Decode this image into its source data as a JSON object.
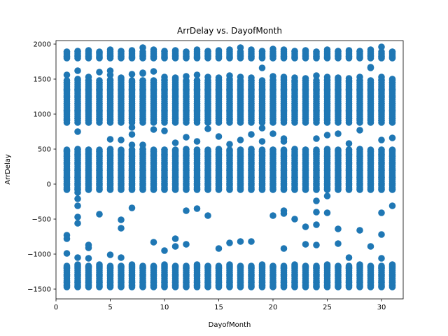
{
  "chart_data": {
    "type": "scatter",
    "title": "ArrDelay vs. DayofMonth",
    "xlabel": "DayofMonth",
    "ylabel": "ArrDelay",
    "xlim": [
      0,
      32
    ],
    "ylim": [
      -1640,
      2050
    ],
    "xticks": [
      0,
      5,
      10,
      15,
      20,
      25,
      30
    ],
    "yticks": [
      -1500,
      -1000,
      -500,
      0,
      500,
      1000,
      1500,
      2000
    ],
    "grid": false,
    "legend": false,
    "marker_color": "#1f77b4",
    "x": [
      1,
      2,
      3,
      4,
      5,
      6,
      7,
      8,
      9,
      10,
      11,
      12,
      13,
      14,
      15,
      16,
      17,
      18,
      19,
      20,
      21,
      22,
      23,
      24,
      25,
      26,
      27,
      28,
      29,
      30,
      31
    ],
    "series": [
      {
        "values": [
          -70,
          -70,
          -70,
          -70,
          -70,
          -70,
          -70,
          -70,
          -70,
          -70,
          -70,
          -70,
          -70,
          -70,
          -70,
          -70,
          -70,
          -70,
          -70,
          -70,
          -70,
          -70,
          -70,
          -70,
          -70,
          -70,
          -70,
          -70,
          -70,
          -70,
          -70
        ]
      },
      {
        "values": [
          0,
          0,
          0,
          0,
          0,
          0,
          0,
          0,
          0,
          0,
          0,
          0,
          0,
          0,
          0,
          0,
          0,
          0,
          0,
          0,
          0,
          0,
          0,
          0,
          0,
          0,
          0,
          0,
          0,
          0,
          0
        ]
      },
      {
        "values": [
          100,
          100,
          100,
          100,
          100,
          100,
          100,
          100,
          100,
          100,
          100,
          100,
          100,
          100,
          100,
          100,
          100,
          100,
          100,
          100,
          100,
          100,
          100,
          100,
          100,
          100,
          100,
          100,
          100,
          100,
          100
        ]
      },
      {
        "values": [
          200,
          200,
          200,
          200,
          200,
          200,
          200,
          200,
          200,
          200,
          200,
          200,
          200,
          200,
          200,
          200,
          200,
          200,
          200,
          200,
          200,
          200,
          200,
          200,
          200,
          200,
          200,
          200,
          200,
          200,
          200
        ]
      },
      {
        "values": [
          300,
          300,
          300,
          300,
          300,
          300,
          300,
          300,
          300,
          300,
          300,
          300,
          300,
          300,
          300,
          300,
          300,
          300,
          300,
          300,
          300,
          300,
          300,
          300,
          300,
          300,
          300,
          300,
          300,
          300,
          300
        ]
      },
      {
        "values": [
          400,
          420,
          430,
          400,
          410,
          420,
          400,
          430,
          410,
          420,
          400,
          410,
          430,
          400,
          420,
          410,
          400,
          420,
          410,
          430,
          400,
          410,
          420,
          430,
          400,
          410,
          420,
          400,
          410,
          420,
          400
        ]
      },
      {
        "values": [
          480,
          500,
          490,
          470,
          500,
          480,
          490,
          500,
          470,
          490,
          480,
          500,
          490,
          470,
          500,
          480,
          490,
          500,
          470,
          490,
          480,
          500,
          490,
          470,
          500,
          480,
          490,
          500,
          470,
          490,
          480
        ]
      },
      {
        "values": [
          920,
          940,
          910,
          930,
          920,
          910,
          940,
          930,
          920,
          910,
          940,
          930,
          920,
          910,
          940,
          930,
          920,
          910,
          940,
          930,
          920,
          910,
          940,
          930,
          920,
          910,
          940,
          930,
          920,
          910,
          940
        ]
      },
      {
        "values": [
          1050,
          1050,
          1050,
          1050,
          1050,
          1050,
          1050,
          1050,
          1050,
          1050,
          1050,
          1050,
          1050,
          1050,
          1050,
          1050,
          1050,
          1050,
          1050,
          1050,
          1050,
          1050,
          1050,
          1050,
          1050,
          1050,
          1050,
          1050,
          1050,
          1050,
          1050
        ]
      },
      {
        "values": [
          1150,
          1150,
          1150,
          1150,
          1150,
          1150,
          1150,
          1150,
          1150,
          1150,
          1150,
          1150,
          1150,
          1150,
          1150,
          1150,
          1150,
          1150,
          1150,
          1150,
          1150,
          1150,
          1150,
          1150,
          1150,
          1150,
          1150,
          1150,
          1150,
          1150,
          1150
        ]
      },
      {
        "values": [
          1250,
          1250,
          1250,
          1250,
          1250,
          1250,
          1250,
          1250,
          1250,
          1250,
          1250,
          1250,
          1250,
          1250,
          1250,
          1250,
          1250,
          1250,
          1250,
          1250,
          1250,
          1250,
          1250,
          1250,
          1250,
          1250,
          1250,
          1250,
          1250,
          1250,
          1250
        ]
      },
      {
        "values": [
          1350,
          1350,
          1350,
          1350,
          1350,
          1350,
          1350,
          1350,
          1350,
          1350,
          1350,
          1350,
          1350,
          1350,
          1350,
          1350,
          1350,
          1350,
          1350,
          1350,
          1350,
          1350,
          1350,
          1350,
          1350,
          1350,
          1350,
          1350,
          1350,
          1350,
          1350
        ]
      },
      {
        "values": [
          1450,
          1500,
          1480,
          1450,
          1490,
          1500,
          1460,
          1480,
          1450,
          1490,
          1500,
          1470,
          1480,
          1450,
          1490,
          1500,
          1470,
          1480,
          1450,
          1490,
          1500,
          1470,
          1480,
          1450,
          1490,
          1500,
          1470,
          1480,
          1450,
          1490,
          1450
        ]
      },
      {
        "values": [
          1560,
          1620,
          1530,
          1600,
          1560,
          1520,
          1570,
          1580,
          1610,
          1530,
          1520,
          1540,
          1560,
          1530,
          1520,
          1550,
          1530,
          1520,
          1660,
          1540,
          1530,
          1520,
          1510,
          1550,
          1530,
          1520,
          1510,
          1530,
          1660,
          1530,
          1500
        ]
      },
      {
        "values": [
          1820,
          1830,
          1820,
          1810,
          1830,
          1820,
          1810,
          1830,
          1820,
          1810,
          1830,
          1820,
          1810,
          1830,
          1820,
          1810,
          1830,
          1820,
          1810,
          1830,
          1820,
          1810,
          1830,
          1820,
          1810,
          1830,
          1820,
          1810,
          1830,
          1820,
          1810
        ]
      },
      {
        "values": [
          1890,
          1900,
          1910,
          1880,
          1920,
          1900,
          1910,
          1950,
          1920,
          1900,
          1910,
          1890,
          1920,
          1900,
          1910,
          1920,
          1950,
          1920,
          1900,
          1930,
          1920,
          1900,
          1910,
          1890,
          1920,
          1900,
          1910,
          1900,
          1920,
          1960,
          1890
        ]
      },
      {
        "values": [
          -1400,
          -1400,
          -1400,
          -1400,
          -1400,
          -1400,
          -1400,
          -1400,
          -1400,
          -1400,
          -1400,
          -1400,
          -1400,
          -1400,
          -1400,
          -1400,
          -1400,
          -1400,
          -1400,
          -1400,
          -1400,
          -1400,
          -1400,
          -1400,
          -1400,
          -1400,
          -1400,
          -1400,
          -1400,
          -1400,
          -1400
        ]
      },
      {
        "values": [
          -1300,
          -1300,
          -1300,
          -1300,
          -1300,
          -1300,
          -1300,
          -1300,
          -1300,
          -1300,
          -1300,
          -1300,
          -1300,
          -1300,
          -1300,
          -1300,
          -1300,
          -1300,
          -1300,
          -1300,
          -1300,
          -1300,
          -1300,
          -1300,
          -1300,
          -1300,
          -1300,
          -1300,
          -1300,
          -1300,
          -1300
        ]
      },
      {
        "values": [
          -1200,
          -1150,
          -1180,
          -1150,
          -1200,
          -1180,
          -1150,
          -1200,
          -1180,
          -1150,
          -1180,
          -1200,
          -1150,
          -1180,
          -1200,
          -1150,
          -1180,
          -1200,
          -1150,
          -1180,
          -1200,
          -1150,
          -1180,
          -1200,
          -1150,
          -1180,
          -1200,
          -1150,
          -1180,
          -1200,
          -1150
        ]
      },
      {
        "values": [
          -1450,
          -1460,
          -1450,
          -1460,
          -1450,
          -1460,
          -1450,
          -1460,
          -1450,
          -1460,
          -1450,
          -1460,
          -1450,
          -1460,
          -1450,
          -1460,
          -1450,
          -1460,
          -1450,
          -1460,
          -1450,
          -1460,
          -1450,
          -1460,
          -1450,
          -1460,
          -1450,
          -1460,
          -1450,
          -1460,
          -1450
        ]
      }
    ],
    "outliers": [
      {
        "x": 1,
        "y": -730
      },
      {
        "x": 1,
        "y": -780
      },
      {
        "x": 1,
        "y": -990
      },
      {
        "x": 1,
        "y": 470
      },
      {
        "x": 2,
        "y": -120
      },
      {
        "x": 2,
        "y": -210
      },
      {
        "x": 2,
        "y": -310
      },
      {
        "x": 2,
        "y": -470
      },
      {
        "x": 2,
        "y": -560
      },
      {
        "x": 2,
        "y": -1050
      },
      {
        "x": 2,
        "y": 750
      },
      {
        "x": 3,
        "y": -870
      },
      {
        "x": 3,
        "y": -910
      },
      {
        "x": 3,
        "y": -1060
      },
      {
        "x": 4,
        "y": -430
      },
      {
        "x": 5,
        "y": -1010
      },
      {
        "x": 5,
        "y": 640
      },
      {
        "x": 5,
        "y": 1620
      },
      {
        "x": 6,
        "y": -510
      },
      {
        "x": 6,
        "y": -630
      },
      {
        "x": 6,
        "y": -1050
      },
      {
        "x": 6,
        "y": 630
      },
      {
        "x": 7,
        "y": -340
      },
      {
        "x": 7,
        "y": 710
      },
      {
        "x": 7,
        "y": 810
      },
      {
        "x": 7,
        "y": 560
      },
      {
        "x": 8,
        "y": 560
      },
      {
        "x": 8,
        "y": 1590
      },
      {
        "x": 9,
        "y": -830
      },
      {
        "x": 9,
        "y": 780
      },
      {
        "x": 10,
        "y": -950
      },
      {
        "x": 10,
        "y": 760
      },
      {
        "x": 11,
        "y": -780
      },
      {
        "x": 11,
        "y": -890
      },
      {
        "x": 11,
        "y": 590
      },
      {
        "x": 12,
        "y": -380
      },
      {
        "x": 12,
        "y": -860
      },
      {
        "x": 12,
        "y": 670
      },
      {
        "x": 13,
        "y": -350
      },
      {
        "x": 13,
        "y": 610
      },
      {
        "x": 14,
        "y": -450
      },
      {
        "x": 14,
        "y": 790
      },
      {
        "x": 14,
        "y": 880
      },
      {
        "x": 15,
        "y": -920
      },
      {
        "x": 15,
        "y": 680
      },
      {
        "x": 16,
        "y": -840
      },
      {
        "x": 16,
        "y": 570
      },
      {
        "x": 17,
        "y": -820
      },
      {
        "x": 17,
        "y": 630
      },
      {
        "x": 18,
        "y": -820
      },
      {
        "x": 18,
        "y": 710
      },
      {
        "x": 19,
        "y": 610
      },
      {
        "x": 19,
        "y": 800
      },
      {
        "x": 20,
        "y": -450
      },
      {
        "x": 20,
        "y": 720
      },
      {
        "x": 21,
        "y": -380
      },
      {
        "x": 21,
        "y": -420
      },
      {
        "x": 21,
        "y": -920
      },
      {
        "x": 21,
        "y": 650
      },
      {
        "x": 21,
        "y": 610
      },
      {
        "x": 22,
        "y": -500
      },
      {
        "x": 23,
        "y": -610
      },
      {
        "x": 23,
        "y": -860
      },
      {
        "x": 24,
        "y": -240
      },
      {
        "x": 24,
        "y": -400
      },
      {
        "x": 24,
        "y": -580
      },
      {
        "x": 24,
        "y": -870
      },
      {
        "x": 24,
        "y": 650
      },
      {
        "x": 25,
        "y": -170
      },
      {
        "x": 25,
        "y": -410
      },
      {
        "x": 25,
        "y": 700
      },
      {
        "x": 26,
        "y": -640
      },
      {
        "x": 26,
        "y": -850
      },
      {
        "x": 26,
        "y": 720
      },
      {
        "x": 27,
        "y": -1050
      },
      {
        "x": 27,
        "y": 580
      },
      {
        "x": 28,
        "y": -660
      },
      {
        "x": 28,
        "y": 770
      },
      {
        "x": 29,
        "y": -890
      },
      {
        "x": 29,
        "y": 1670
      },
      {
        "x": 30,
        "y": -410
      },
      {
        "x": 30,
        "y": -720
      },
      {
        "x": 30,
        "y": -1060
      },
      {
        "x": 30,
        "y": 630
      },
      {
        "x": 31,
        "y": -310
      },
      {
        "x": 31,
        "y": 660
      }
    ]
  }
}
